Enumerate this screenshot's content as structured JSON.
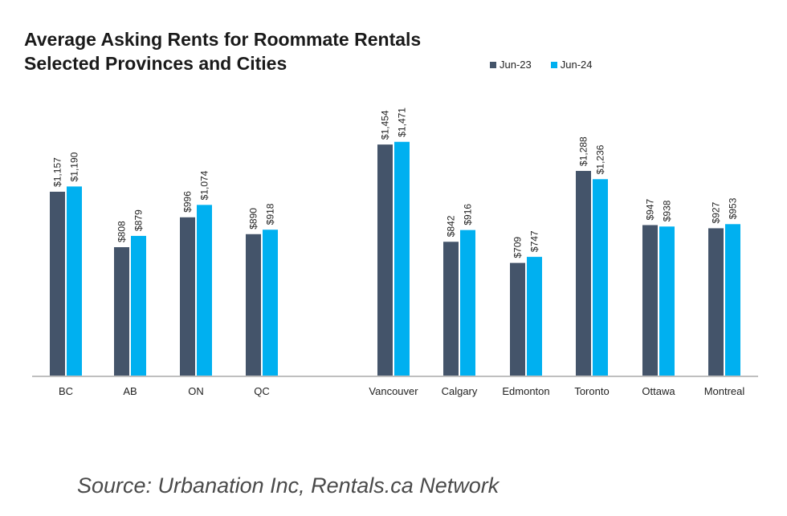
{
  "chart_data": {
    "type": "bar",
    "title_lines": [
      "Average Asking Rents for Roommate Rentals",
      "Selected Provinces and Cities"
    ],
    "categories": [
      "BC",
      "AB",
      "ON",
      "QC",
      "Vancouver",
      "Calgary",
      "Edmonton",
      "Toronto",
      "Ottawa",
      "Montreal"
    ],
    "series": [
      {
        "name": "Jun-23",
        "color": "#44546a",
        "values": [
          1157,
          808,
          996,
          890,
          1454,
          842,
          709,
          1288,
          947,
          927
        ],
        "labels": [
          "$1,157",
          "$808",
          "$996",
          "$890",
          "$1,454",
          "$842",
          "$709",
          "$1,288",
          "$947",
          "$927"
        ]
      },
      {
        "name": "Jun-24",
        "color": "#00b0f0",
        "values": [
          1190,
          879,
          1074,
          918,
          1471,
          916,
          747,
          1236,
          938,
          953
        ],
        "labels": [
          "$1,190",
          "$879",
          "$1,074",
          "$918",
          "$1,471",
          "$916",
          "$747",
          "$1,236",
          "$938",
          "$953"
        ]
      }
    ],
    "ylim": [
      0,
      1700
    ],
    "grid": false,
    "legend_position": "top-right",
    "xlabel": "",
    "ylabel": ""
  },
  "source": "Source: Urbanation Inc, Rentals.ca Network"
}
